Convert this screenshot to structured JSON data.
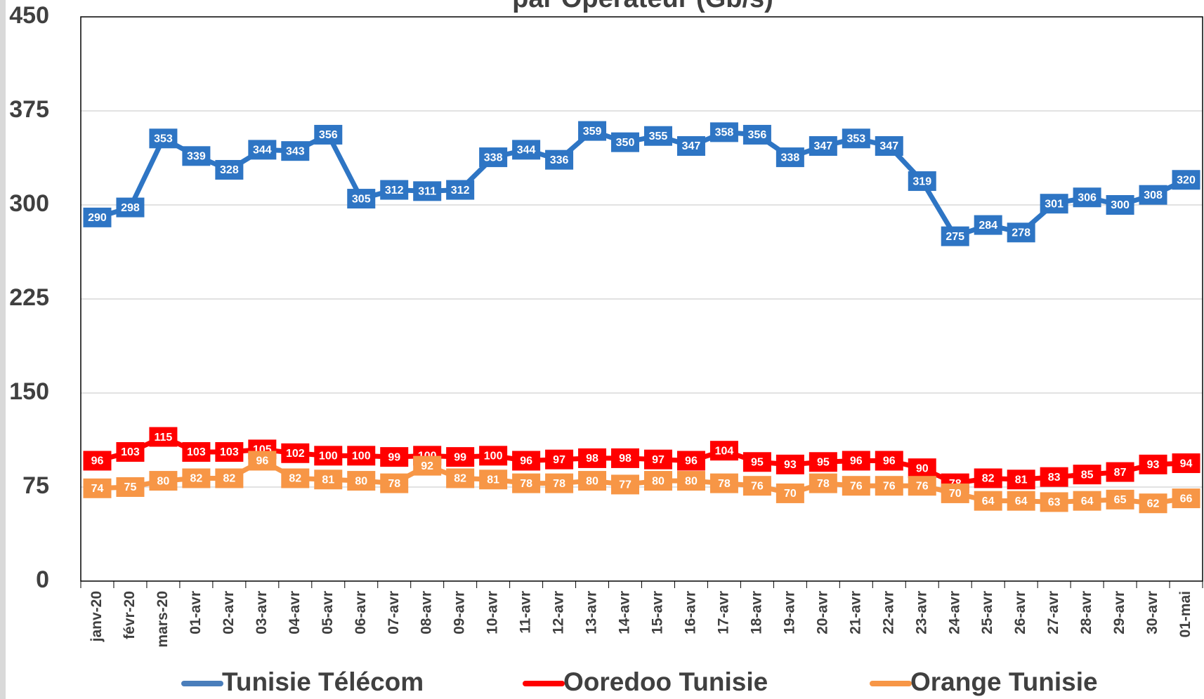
{
  "chart_data": {
    "type": "line",
    "title": "par Opérateur (Gb/s)",
    "categories": [
      "janv-20",
      "févr-20",
      "mars-20",
      "01-avr",
      "02-avr",
      "03-avr",
      "04-avr",
      "05-avr",
      "06-avr",
      "07-avr",
      "08-avr",
      "09-avr",
      "10-avr",
      "11-avr",
      "12-avr",
      "13-avr",
      "14-avr",
      "15-avr",
      "16-avr",
      "17-avr",
      "18-avr",
      "19-avr",
      "20-avr",
      "21-avr",
      "22-avr",
      "23-avr",
      "24-avr",
      "25-avr",
      "26-avr",
      "27-avr",
      "28-avr",
      "29-avr",
      "30-avr",
      "01-mai"
    ],
    "series": [
      {
        "name": "Tunisie Télécom",
        "color": "#2e75c4",
        "values": [
          290,
          298,
          353,
          339,
          328,
          344,
          343,
          356,
          305,
          312,
          311,
          312,
          338,
          344,
          336,
          359,
          350,
          355,
          347,
          358,
          356,
          338,
          347,
          353,
          347,
          319,
          275,
          284,
          278,
          301,
          306,
          300,
          308,
          320
        ]
      },
      {
        "name": "Ooredoo Tunisie",
        "color": "#ff0000",
        "values": [
          96,
          103,
          115,
          103,
          103,
          105,
          102,
          100,
          100,
          99,
          100,
          99,
          100,
          96,
          97,
          98,
          98,
          97,
          96,
          104,
          95,
          93,
          95,
          96,
          96,
          90,
          78,
          82,
          81,
          83,
          85,
          87,
          93,
          94
        ]
      },
      {
        "name": "Orange Tunisie",
        "color": "#f79646",
        "values": [
          74,
          75,
          80,
          82,
          82,
          96,
          82,
          81,
          80,
          78,
          92,
          82,
          81,
          78,
          78,
          80,
          77,
          80,
          80,
          78,
          76,
          70,
          78,
          76,
          76,
          76,
          70,
          64,
          64,
          63,
          64,
          65,
          62,
          66
        ]
      }
    ],
    "ylim": [
      0,
      450
    ],
    "yticks": [
      0,
      75,
      150,
      225,
      300,
      375,
      450
    ],
    "grid": true
  }
}
